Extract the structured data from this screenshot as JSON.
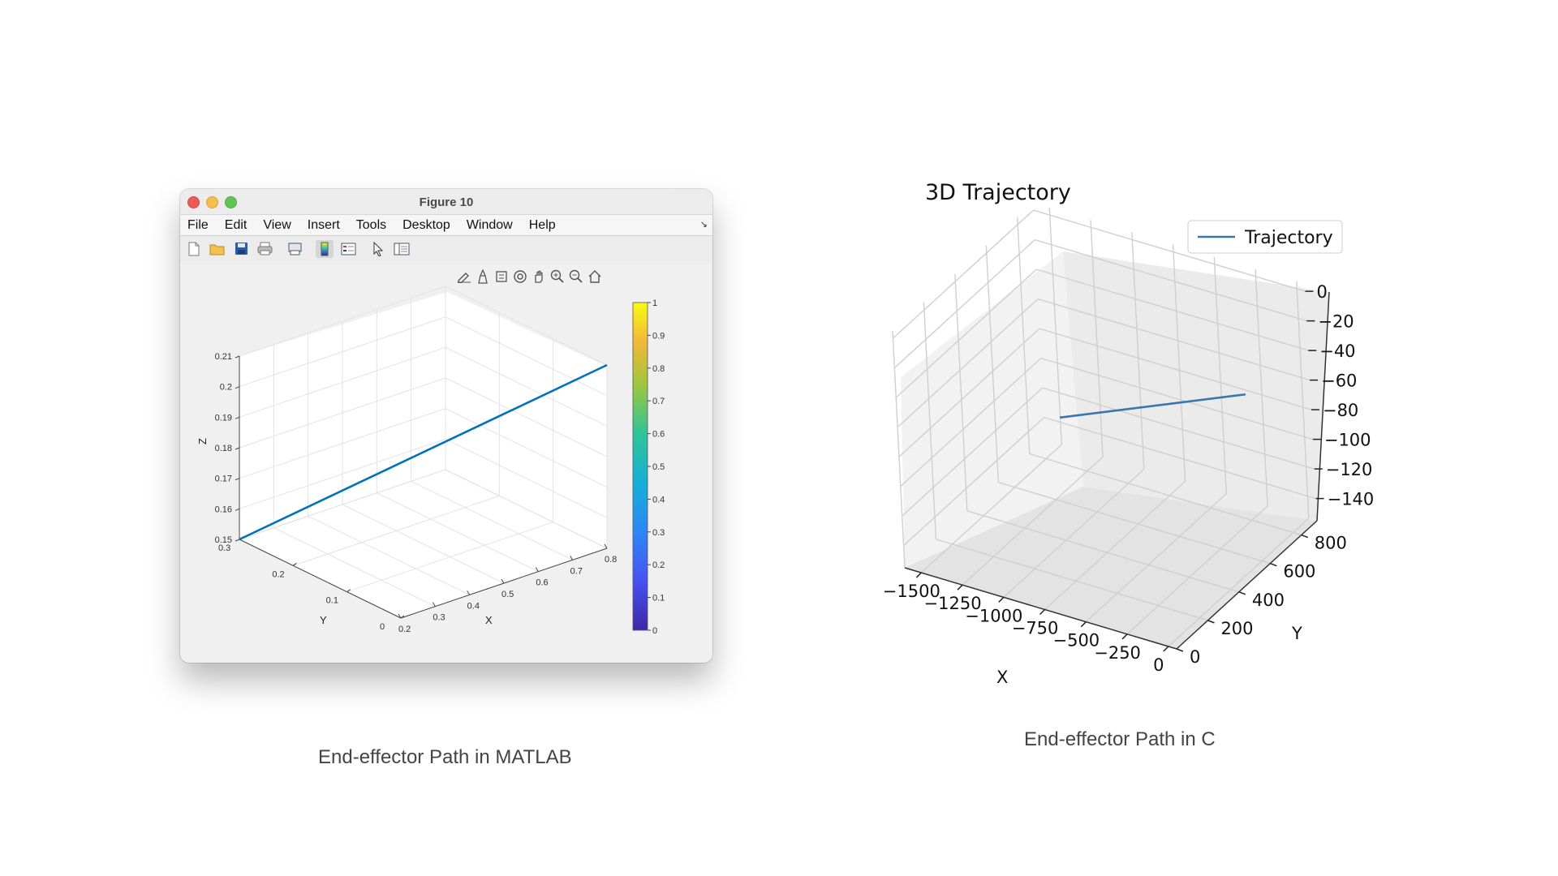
{
  "matlab_window": {
    "title": "Figure 10",
    "menu": [
      "File",
      "Edit",
      "View",
      "Insert",
      "Tools",
      "Desktop",
      "Window",
      "Help"
    ],
    "toolbar_icons": [
      "new-figure-icon",
      "open-file-icon",
      "save-icon",
      "print-icon",
      "print-preview-icon",
      "colorbar-icon",
      "legend-icon",
      "pointer-icon",
      "property-inspector-icon"
    ],
    "axes_toolbar_icons": [
      "brush-icon",
      "data-tips-icon",
      "pan-data-icon",
      "rotate-3d-icon",
      "pan-icon",
      "zoom-in-icon",
      "zoom-out-icon",
      "home-icon"
    ],
    "colors": {
      "line": "#0072bd"
    }
  },
  "matlab_caption": "End-effector Path in MATLAB",
  "python_caption": "End-effector Path in C",
  "chart_data": [
    {
      "type": "line",
      "dims": 3,
      "title": "",
      "xlabel": "X",
      "ylabel": "Y",
      "zlabel": "Z",
      "x_ticks": [
        "0.2",
        "0.3",
        "0.4",
        "0.5",
        "0.6",
        "0.7",
        "0.8"
      ],
      "y_ticks": [
        "0",
        "0.1",
        "0.2",
        "0.3"
      ],
      "z_ticks": [
        "0.15",
        "0.16",
        "0.17",
        "0.18",
        "0.19",
        "0.2",
        "0.21"
      ],
      "xlim": [
        0.2,
        0.8
      ],
      "ylim": [
        0,
        0.3
      ],
      "zlim": [
        0.15,
        0.21
      ],
      "series": [
        {
          "x": [
            0.2,
            0.8
          ],
          "y": [
            0.3,
            0.0
          ],
          "z": [
            0.15,
            0.21
          ]
        }
      ],
      "colorbar": {
        "ticks": [
          "0",
          "0.1",
          "0.2",
          "0.3",
          "0.4",
          "0.5",
          "0.6",
          "0.7",
          "0.8",
          "0.9",
          "1"
        ],
        "range": [
          0,
          1
        ],
        "colormap": "parula"
      },
      "grid": true
    },
    {
      "type": "line",
      "dims": 3,
      "title": "3D Trajectory",
      "xlabel": "X",
      "ylabel": "Y",
      "zlabel": "",
      "x_ticks": [
        "−1500",
        "−1250",
        "−1000",
        "−750",
        "−500",
        "−250",
        "0"
      ],
      "y_ticks": [
        "0",
        "200",
        "400",
        "600",
        "800"
      ],
      "z_ticks": [
        "0",
        "−20",
        "−40",
        "−60",
        "−80",
        "−100",
        "−120",
        "−140"
      ],
      "legend": [
        "Trajectory"
      ],
      "legend_position": "top-right",
      "series": [
        {
          "name": "Trajectory",
          "x": [
            -1100,
            -250
          ],
          "y": [
            500,
            800
          ],
          "z": [
            -85,
            -70
          ]
        }
      ],
      "colors": {
        "line": "#3b75af"
      },
      "grid": true
    }
  ]
}
